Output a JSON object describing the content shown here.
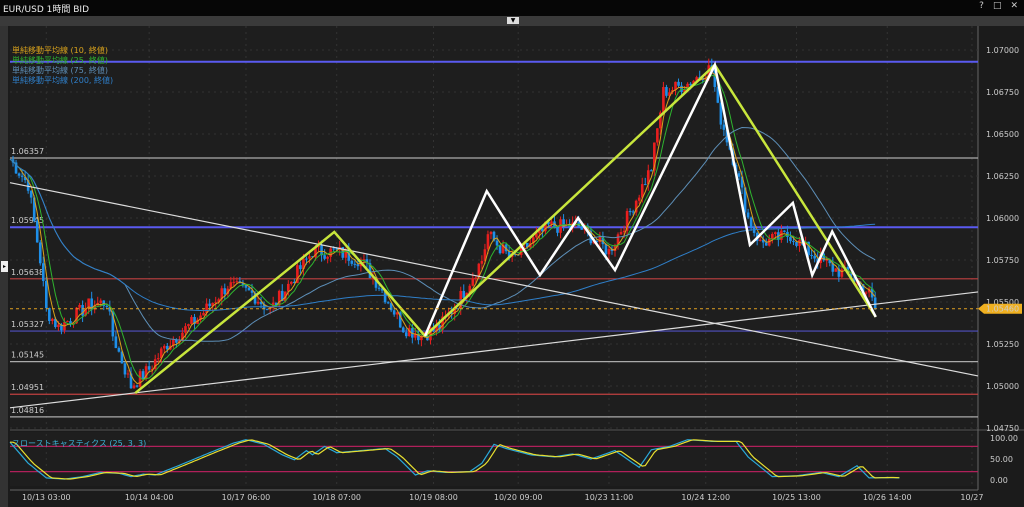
{
  "window": {
    "title": "EUR/USD 1時間 BID",
    "help_icon": "?",
    "maximize_icon": "□",
    "close_icon": "✕"
  },
  "legend": [
    {
      "label": "単純移動平均線 (10, 終値)",
      "color": "#d9a21b",
      "period": 10
    },
    {
      "label": "単純移動平均線 (25, 終値)",
      "color": "#2fb52f",
      "period": 25
    },
    {
      "label": "単純移動平均線 (75, 終値)",
      "color": "#5d8fb8",
      "period": 75
    },
    {
      "label": "単純移動平均線 (200, 終値)",
      "color": "#2f7fc9",
      "period": 200
    }
  ],
  "stoch_label": "スローストキャスティクス (25, 3, 3)",
  "chart_data": {
    "type": "candlestick",
    "price_axis": {
      "ticks": [
        "1.07000",
        "1.06750",
        "1.06500",
        "1.06250",
        "1.06000",
        "1.05750",
        "1.05500",
        "1.05250",
        "1.05000",
        "1.04750"
      ],
      "range": [
        1.0475,
        1.0722
      ]
    },
    "current_price": "1.05460",
    "time_axis": {
      "ticks": [
        {
          "i": 6,
          "label": "10/13 03:00"
        },
        {
          "i": 23,
          "label": "10/14 04:00"
        },
        {
          "i": 39,
          "label": "10/17 06:00"
        },
        {
          "i": 54,
          "label": "10/18 07:00"
        },
        {
          "i": 70,
          "label": "10/19 08:00"
        },
        {
          "i": 84,
          "label": "10/20 09:00"
        },
        {
          "i": 99,
          "label": "10/23 11:00"
        },
        {
          "i": 115,
          "label": "10/24 12:00"
        },
        {
          "i": 130,
          "label": "10/25 13:00"
        },
        {
          "i": 145,
          "label": "10/26 14:00"
        },
        {
          "i": 159,
          "label": "10/27"
        }
      ]
    },
    "close_path": [
      [
        0,
        1.0635
      ],
      [
        2,
        1.0625
      ],
      [
        3,
        1.062
      ],
      [
        5,
        1.0575
      ],
      [
        6,
        1.0545
      ],
      [
        8,
        1.0535
      ],
      [
        10,
        1.054
      ],
      [
        13,
        1.0548
      ],
      [
        16,
        1.055
      ],
      [
        17,
        1.053
      ],
      [
        20,
        1.05
      ],
      [
        23,
        1.051
      ],
      [
        26,
        1.0525
      ],
      [
        31,
        1.054
      ],
      [
        36,
        1.056
      ],
      [
        40,
        1.0555
      ],
      [
        43,
        1.0545
      ],
      [
        46,
        1.056
      ],
      [
        50,
        1.058
      ],
      [
        54,
        1.058
      ],
      [
        58,
        1.0575
      ],
      [
        61,
        1.056
      ],
      [
        65,
        1.0535
      ],
      [
        68,
        1.053
      ],
      [
        71,
        1.0535
      ],
      [
        74,
        1.055
      ],
      [
        78,
        1.0575
      ],
      [
        79,
        1.059
      ],
      [
        83,
        1.0575
      ],
      [
        86,
        1.0585
      ],
      [
        89,
        1.0595
      ],
      [
        94,
        1.0595
      ],
      [
        99,
        1.058
      ],
      [
        102,
        1.06
      ],
      [
        106,
        1.063
      ],
      [
        108,
        1.0675
      ],
      [
        112,
        1.068
      ],
      [
        116,
        1.069
      ],
      [
        117,
        1.0665
      ],
      [
        120,
        1.063
      ],
      [
        122,
        1.06
      ],
      [
        124,
        1.0585
      ],
      [
        129,
        1.059
      ],
      [
        132,
        1.058
      ],
      [
        136,
        1.057
      ],
      [
        139,
        1.0565
      ],
      [
        142,
        1.0555
      ],
      [
        143,
        1.0546
      ]
    ],
    "horizontal_lines": [
      {
        "price": 1.0693,
        "color": "#5a5af0",
        "label": ""
      },
      {
        "price": 1.06357,
        "color": "#aaaaaa",
        "label": "1.06357"
      },
      {
        "price": 1.05945,
        "color": "#5a5af0",
        "label": "1.05945"
      },
      {
        "price": 1.05638,
        "color": "#c04040",
        "label": "1.05638"
      },
      {
        "price": 1.05327,
        "color": "#5050c0",
        "label": "1.05327"
      },
      {
        "price": 1.05145,
        "color": "#aaaaaa",
        "label": "1.05145"
      },
      {
        "price": 1.04951,
        "color": "#c04040",
        "label": "1.04951"
      },
      {
        "price": 1.04816,
        "color": "#aaaaaa",
        "label": "1.04816"
      }
    ],
    "trendlines": [
      {
        "color": "#dddddd",
        "points": [
          [
            0,
            1.0621
          ],
          [
            160,
            1.0506
          ]
        ]
      },
      {
        "color": "#dddddd",
        "points": [
          [
            0,
            1.0487
          ],
          [
            160,
            1.0556
          ]
        ]
      }
    ],
    "zigzags": [
      {
        "color": "#c8e63c",
        "points": [
          [
            20.7,
            1.04958
          ],
          [
            53.6,
            1.05917
          ],
          [
            68.6,
            1.05298
          ],
          [
            116.5,
            1.06911
          ],
          [
            143.1,
            1.05411
          ]
        ]
      },
      {
        "color": "#ffffff",
        "points": [
          [
            68.6,
            1.05298
          ],
          [
            78.8,
            1.0616
          ],
          [
            87.6,
            1.0566
          ],
          [
            93.9,
            1.06
          ],
          [
            100,
            1.0569
          ],
          [
            116.5,
            1.06911
          ],
          [
            122.3,
            1.0584
          ],
          [
            129.4,
            1.0609
          ],
          [
            132.6,
            1.0566
          ],
          [
            135.9,
            1.0592
          ],
          [
            143.1,
            1.05411
          ]
        ]
      }
    ],
    "stochastic": {
      "ticks": [
        "100.00",
        "50.00",
        "0.00"
      ],
      "levels": [
        80,
        20
      ],
      "k_path": [
        [
          0,
          90
        ],
        [
          3,
          40
        ],
        [
          6,
          5
        ],
        [
          9,
          2
        ],
        [
          12,
          8
        ],
        [
          15,
          18
        ],
        [
          18,
          16
        ],
        [
          20,
          8
        ],
        [
          22,
          14
        ],
        [
          24,
          12
        ],
        [
          28,
          35
        ],
        [
          33,
          65
        ],
        [
          37,
          88
        ],
        [
          39,
          96
        ],
        [
          42,
          85
        ],
        [
          45,
          60
        ],
        [
          47,
          48
        ],
        [
          49,
          70
        ],
        [
          50,
          60
        ],
        [
          52,
          80
        ],
        [
          54,
          65
        ],
        [
          58,
          70
        ],
        [
          62,
          75
        ],
        [
          64,
          55
        ],
        [
          67,
          12
        ],
        [
          69,
          22
        ],
        [
          72,
          18
        ],
        [
          76,
          20
        ],
        [
          78,
          40
        ],
        [
          80,
          85
        ],
        [
          82,
          75
        ],
        [
          86,
          60
        ],
        [
          90,
          55
        ],
        [
          93,
          62
        ],
        [
          96,
          50
        ],
        [
          100,
          70
        ],
        [
          104,
          30
        ],
        [
          106,
          72
        ],
        [
          109,
          80
        ],
        [
          112,
          96
        ],
        [
          116,
          92
        ],
        [
          120,
          92
        ],
        [
          122,
          55
        ],
        [
          126,
          8
        ],
        [
          130,
          10
        ],
        [
          134,
          18
        ],
        [
          137,
          8
        ],
        [
          140,
          34
        ],
        [
          142,
          5
        ],
        [
          145,
          6
        ],
        [
          147,
          5
        ]
      ]
    }
  }
}
